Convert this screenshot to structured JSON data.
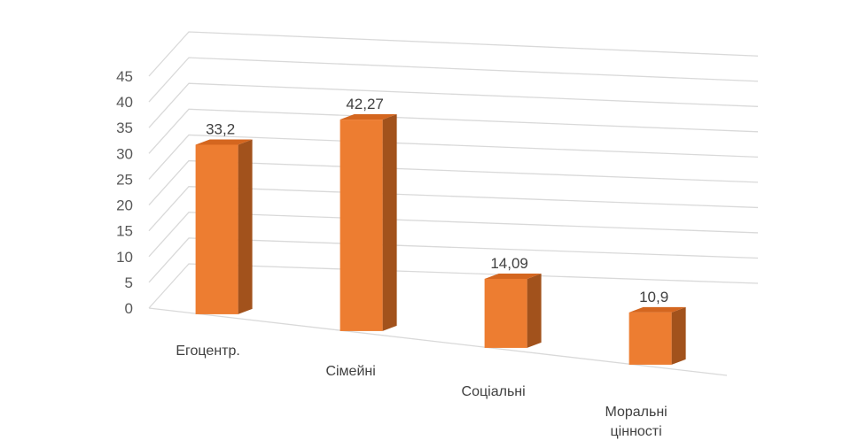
{
  "chart_data": {
    "type": "bar",
    "title": "",
    "xlabel": "",
    "ylabel": "",
    "categories": [
      [
        "Егоцентр."
      ],
      [
        "Сімейні"
      ],
      [
        "Соціальні"
      ],
      [
        "Моральні",
        "цінності"
      ]
    ],
    "values": [
      33.2,
      42.27,
      14.09,
      10.9
    ],
    "value_labels": [
      "33,2",
      "42,27",
      "14,09",
      "10,9"
    ],
    "y_ticks": [
      "0",
      "5",
      "10",
      "15",
      "20",
      "25",
      "30",
      "35",
      "40",
      "45"
    ],
    "ylim": [
      0,
      45
    ],
    "grid": true,
    "legend": "none",
    "style": "3d-perspective",
    "colors": {
      "bar_front": "#ED7D31",
      "bar_side": "#A2521C",
      "bar_top": "#D4661F",
      "grid": "#D9D9D9",
      "text": "#595959"
    }
  }
}
